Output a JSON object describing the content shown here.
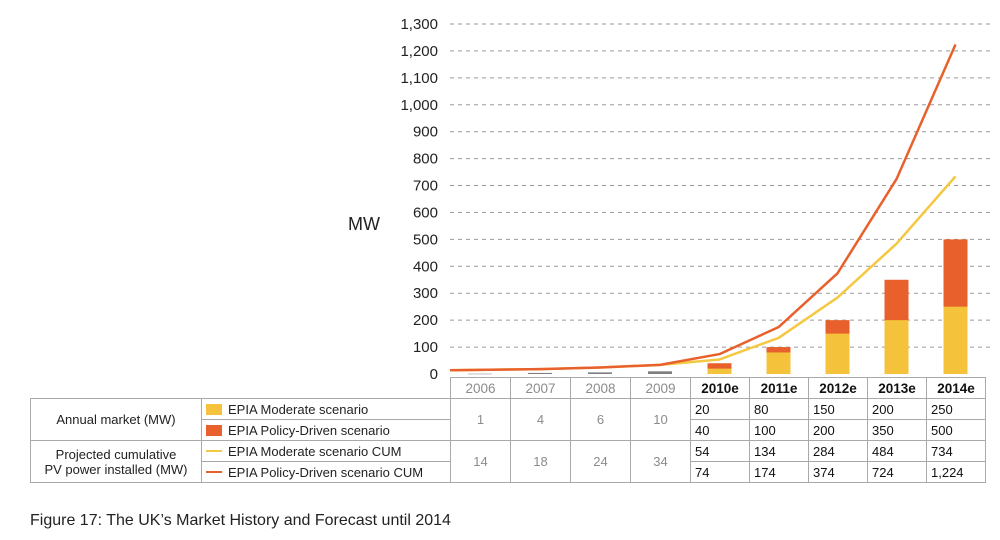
{
  "chart_data": {
    "type": "bar",
    "ylabel": "MW",
    "ylim": [
      0,
      1300
    ],
    "yticks": [
      0,
      100,
      200,
      300,
      400,
      500,
      600,
      700,
      800,
      900,
      1000,
      1100,
      1200,
      1300
    ],
    "ytick_labels": [
      "0",
      "100",
      "200",
      "300",
      "400",
      "500",
      "600",
      "700",
      "800",
      "900",
      "1,000",
      "1,100",
      "1,200",
      "1,300"
    ],
    "grid": true,
    "categories": [
      "2006",
      "2007",
      "2008",
      "2009",
      "2010e",
      "2011e",
      "2012e",
      "2013e",
      "2014e"
    ],
    "historical_count": 4,
    "series": [
      {
        "name": "EPIA Moderate scenario",
        "kind": "bar",
        "color": "#f5c33b",
        "values": [
          null,
          null,
          null,
          null,
          20,
          80,
          150,
          200,
          250
        ]
      },
      {
        "name": "EPIA Policy-Driven scenario",
        "kind": "bar",
        "color": "#e8612c",
        "values": [
          null,
          null,
          null,
          null,
          40,
          100,
          200,
          350,
          500
        ]
      },
      {
        "name": "EPIA Moderate scenario CUM",
        "kind": "line",
        "color": "#f5c842",
        "values": [
          14,
          18,
          24,
          34,
          54,
          134,
          284,
          484,
          734
        ]
      },
      {
        "name": "EPIA Policy-Driven scenario CUM",
        "kind": "line",
        "color": "#e8612c",
        "values": [
          14,
          18,
          24,
          34,
          74,
          174,
          374,
          724,
          1224
        ]
      }
    ],
    "historical_annual": [
      1,
      4,
      6,
      10
    ],
    "historical_bar_color": "#7f7f7f"
  },
  "table": {
    "group_annual": "Annual market (MW)",
    "group_cum_line1": "Projected cumulative",
    "group_cum_line2": "PV power installed (MW)",
    "annual_hist": [
      "1",
      "4",
      "6",
      "10"
    ],
    "cum_hist": [
      "14",
      "18",
      "24",
      "34"
    ],
    "rows": [
      {
        "label": "EPIA Moderate scenario",
        "values": [
          "20",
          "80",
          "150",
          "200",
          "250"
        ]
      },
      {
        "label": "EPIA Policy-Driven scenario",
        "values": [
          "40",
          "100",
          "200",
          "350",
          "500"
        ]
      },
      {
        "label": "EPIA Moderate scenario CUM",
        "values": [
          "54",
          "134",
          "284",
          "484",
          "734"
        ]
      },
      {
        "label": "EPIA Policy-Driven scenario CUM",
        "values": [
          "74",
          "174",
          "374",
          "724",
          "1,224"
        ]
      }
    ]
  },
  "caption": "Figure 17: The UK’s Market History and Forecast until 2014"
}
